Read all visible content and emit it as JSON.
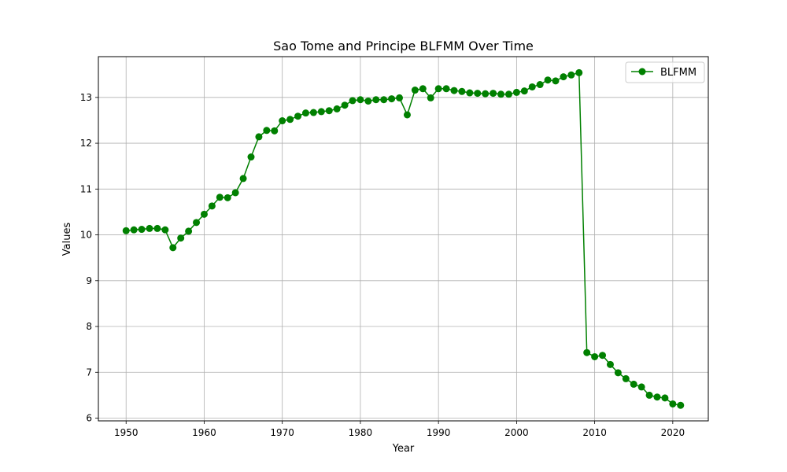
{
  "chart_data": {
    "type": "line",
    "title": "Sao Tome and Principe BLFMM Over Time",
    "xlabel": "Year",
    "ylabel": "Values",
    "xlim": [
      1946.45,
      2024.55
    ],
    "ylim": [
      5.94,
      13.89
    ],
    "x_ticks": [
      1950,
      1960,
      1970,
      1980,
      1990,
      2000,
      2010,
      2020
    ],
    "y_ticks": [
      6,
      7,
      8,
      9,
      10,
      11,
      12,
      13
    ],
    "grid": true,
    "legend_position": "top-right",
    "series": [
      {
        "name": "BLFMM",
        "color": "#008000",
        "marker": "circle",
        "x": [
          1950,
          1951,
          1952,
          1953,
          1954,
          1955,
          1956,
          1957,
          1958,
          1959,
          1960,
          1961,
          1962,
          1963,
          1964,
          1965,
          1966,
          1967,
          1968,
          1969,
          1970,
          1971,
          1972,
          1973,
          1974,
          1975,
          1976,
          1977,
          1978,
          1979,
          1980,
          1981,
          1982,
          1983,
          1984,
          1985,
          1986,
          1987,
          1988,
          1989,
          1990,
          1991,
          1992,
          1993,
          1994,
          1995,
          1996,
          1997,
          1998,
          1999,
          2000,
          2001,
          2002,
          2003,
          2004,
          2005,
          2006,
          2007,
          2008,
          2009,
          2010,
          2011,
          2012,
          2013,
          2014,
          2015,
          2016,
          2017,
          2018,
          2019,
          2020,
          2021
        ],
        "y": [
          10.09,
          10.11,
          10.12,
          10.14,
          10.14,
          10.11,
          9.72,
          9.93,
          10.08,
          10.27,
          10.45,
          10.63,
          10.82,
          10.81,
          10.92,
          11.23,
          11.7,
          12.14,
          12.28,
          12.27,
          12.49,
          12.52,
          12.59,
          12.66,
          12.67,
          12.69,
          12.71,
          12.75,
          12.83,
          12.93,
          12.95,
          12.92,
          12.95,
          12.95,
          12.97,
          12.99,
          12.62,
          13.16,
          13.19,
          12.99,
          13.19,
          13.19,
          13.15,
          13.13,
          13.1,
          13.09,
          13.08,
          13.09,
          13.07,
          13.07,
          13.11,
          13.14,
          13.23,
          13.28,
          13.38,
          13.36,
          13.45,
          13.49,
          13.54,
          7.43,
          7.34,
          7.37,
          7.17,
          6.99,
          6.86,
          6.74,
          6.68,
          6.5,
          6.46,
          6.44,
          6.31,
          6.28
        ]
      }
    ]
  }
}
